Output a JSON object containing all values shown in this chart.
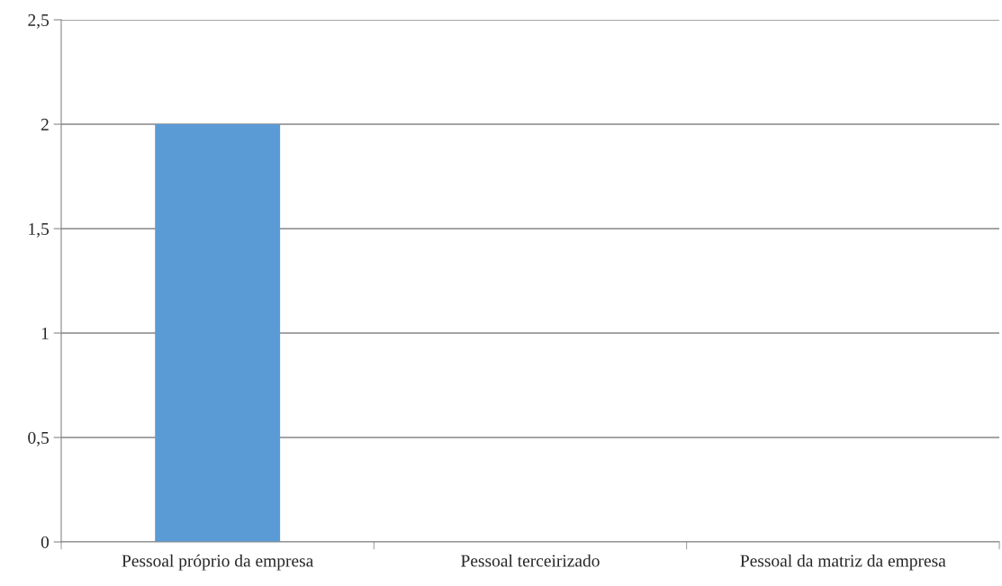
{
  "chart_data": {
    "type": "bar",
    "categories": [
      "Pessoal próprio da empresa",
      "Pessoal terceirizado",
      "Pessoal da matriz da empresa"
    ],
    "values": [
      2,
      0,
      0
    ],
    "color": "#5b9bd5",
    "ylim": [
      0,
      2.5
    ],
    "yticks": [
      {
        "value": 0,
        "label": "0"
      },
      {
        "value": 0.5,
        "label": "0,5"
      },
      {
        "value": 1,
        "label": "1"
      },
      {
        "value": 1.5,
        "label": "1,5"
      },
      {
        "value": 2,
        "label": "2"
      },
      {
        "value": 2.5,
        "label": "2,5"
      }
    ],
    "grid": "y",
    "legend": false
  }
}
